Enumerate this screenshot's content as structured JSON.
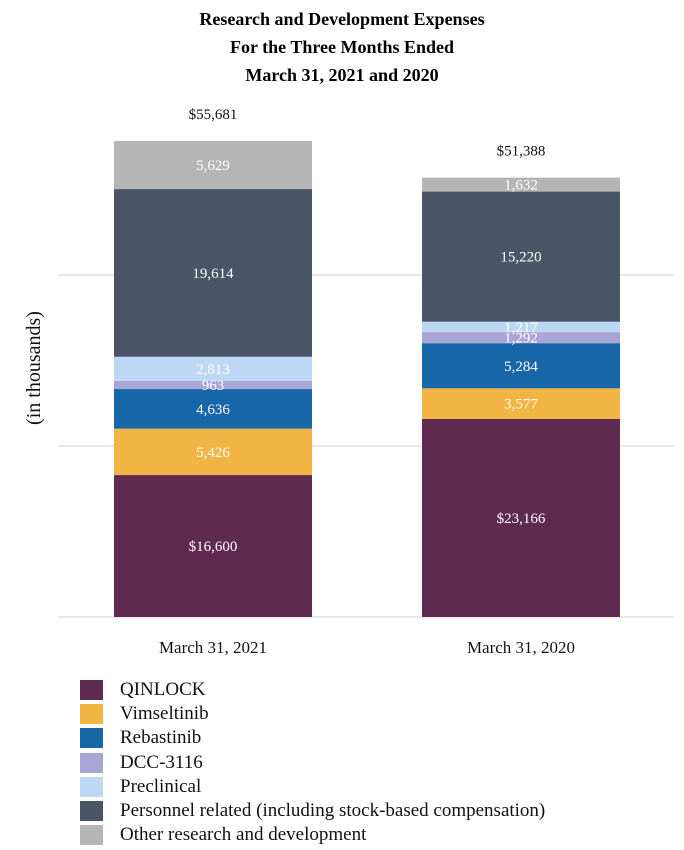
{
  "chart_data": {
    "type": "bar",
    "stacked": true,
    "title": [
      "Research and Development Expenses",
      "For the Three Months Ended",
      "March 31, 2021 and 2020"
    ],
    "ylabel": "(in thousands)",
    "xlabel": "",
    "ylim": [
      0,
      56000
    ],
    "grid": true,
    "legend_position": "bottom",
    "categories": [
      "March 31, 2021",
      "March 31, 2020"
    ],
    "totals": [
      "$55,681",
      "$51,388"
    ],
    "series": [
      {
        "name": "QINLOCK",
        "color": "#5e2a4f",
        "values": [
          16600,
          23166
        ],
        "labels": [
          "$16,600",
          "$23,166"
        ]
      },
      {
        "name": "Vimseltinib",
        "color": "#f2b544",
        "values": [
          5426,
          3577
        ],
        "labels": [
          "5,426",
          "3,577"
        ]
      },
      {
        "name": "Rebastinib",
        "color": "#1767a8",
        "values": [
          4636,
          5284
        ],
        "labels": [
          "4,636",
          "5,284"
        ]
      },
      {
        "name": "DCC-3116",
        "color": "#a9a5d6",
        "values": [
          963,
          1292
        ],
        "labels": [
          "963",
          "1,292"
        ]
      },
      {
        "name": "Preclinical",
        "color": "#bdd8f5",
        "values": [
          2813,
          1217
        ],
        "labels": [
          "2,813",
          "1,217"
        ]
      },
      {
        "name": "Personnel related (including stock-based compensation)",
        "color": "#4a5568",
        "values": [
          19614,
          15220
        ],
        "labels": [
          "19,614",
          "15,220"
        ]
      },
      {
        "name": "Other research and development",
        "color": "#b5b5b5",
        "values": [
          5629,
          1632
        ],
        "labels": [
          "5,629",
          "1,632"
        ]
      }
    ]
  }
}
